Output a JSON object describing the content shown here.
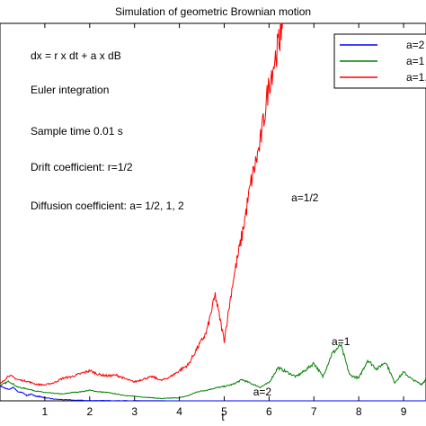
{
  "chart_data": {
    "type": "line",
    "title": "Simulation of geometric Brownian motion",
    "xlabel": "t",
    "ylabel": "",
    "xlim": [
      0,
      9.5
    ],
    "ylim": [
      0,
      25
    ],
    "x_ticks": [
      "1",
      "2",
      "3",
      "4",
      "5",
      "6",
      "7",
      "8",
      "9"
    ],
    "legend": {
      "position": "top-right",
      "entries": [
        "a=2",
        "a=1",
        "a=1..."
      ]
    },
    "grid": false,
    "annotations": [
      "dx = r x dt + a x dB",
      "Euler integration",
      "Sample time 0.01 s",
      "Drift coefficient: r=1/2",
      "Diffusion coefficient: a= 1/2, 1, 2"
    ],
    "curve_labels": [
      {
        "text": "a=1/2",
        "series": "a=1/2",
        "x": 6.8,
        "y": 13.2
      },
      {
        "text": "a=1",
        "series": "a=1",
        "x": 7.6,
        "y": 3.7
      },
      {
        "text": "a=2",
        "series": "a=2",
        "x": 5.85,
        "y": 0.35
      }
    ],
    "series": [
      {
        "name": "a=2",
        "color": "#0000ff",
        "x": [
          0,
          0.1,
          0.2,
          0.3,
          0.4,
          0.5,
          0.6,
          0.7,
          0.8,
          0.9,
          1.0,
          1.2,
          1.5,
          2,
          3,
          4,
          5,
          6,
          7,
          8,
          9,
          9.5
        ],
        "y": [
          1.0,
          0.85,
          0.75,
          0.9,
          0.6,
          0.55,
          0.35,
          0.45,
          0.3,
          0.28,
          0.2,
          0.12,
          0.06,
          0.02,
          0.01,
          0.0,
          0.0,
          0.0,
          0.0,
          0.0,
          0.0,
          0.0
        ]
      },
      {
        "name": "a=1",
        "color": "#008000",
        "x": [
          0,
          0.2,
          0.4,
          0.6,
          0.8,
          1.0,
          1.2,
          1.4,
          1.6,
          1.8,
          2.0,
          2.2,
          2.4,
          2.6,
          2.8,
          3.0,
          3.2,
          3.4,
          3.6,
          3.8,
          4.0,
          4.2,
          4.4,
          4.6,
          4.8,
          5.0,
          5.2,
          5.4,
          5.6,
          5.8,
          6.0,
          6.2,
          6.4,
          6.6,
          6.8,
          7.0,
          7.2,
          7.4,
          7.6,
          7.8,
          8.0,
          8.2,
          8.4,
          8.6,
          8.8,
          9.0,
          9.2,
          9.4,
          9.5
        ],
        "y": [
          1.0,
          1.3,
          0.9,
          0.8,
          0.65,
          0.55,
          0.5,
          0.45,
          0.55,
          0.6,
          0.7,
          0.6,
          0.55,
          0.45,
          0.35,
          0.3,
          0.25,
          0.2,
          0.15,
          0.18,
          0.2,
          0.35,
          0.6,
          0.7,
          0.85,
          0.95,
          1.1,
          1.4,
          1.15,
          0.9,
          1.2,
          2.2,
          1.9,
          1.6,
          2.0,
          2.5,
          1.6,
          3.1,
          3.7,
          1.7,
          1.5,
          2.7,
          2.1,
          2.6,
          1.2,
          1.9,
          1.4,
          1.1,
          1.4
        ]
      },
      {
        "name": "a=1/2",
        "color": "#ff0000",
        "x": [
          0,
          0.2,
          0.4,
          0.6,
          0.8,
          1.0,
          1.2,
          1.4,
          1.6,
          1.8,
          2.0,
          2.2,
          2.4,
          2.6,
          2.8,
          3.0,
          3.2,
          3.4,
          3.6,
          3.8,
          4.0,
          4.2,
          4.4,
          4.6,
          4.8,
          5.0,
          5.2,
          5.4,
          5.6,
          5.8,
          6.0,
          6.2,
          6.3
        ],
        "y": [
          1.1,
          1.7,
          1.4,
          1.3,
          1.1,
          1.05,
          1.2,
          1.5,
          1.6,
          1.8,
          2.0,
          1.75,
          1.65,
          1.7,
          1.45,
          1.25,
          1.45,
          1.6,
          1.35,
          1.6,
          2.0,
          2.4,
          3.5,
          4.5,
          7.0,
          4.0,
          8.0,
          11.0,
          14.5,
          17.0,
          21.0,
          23.5,
          25.0
        ]
      }
    ]
  }
}
